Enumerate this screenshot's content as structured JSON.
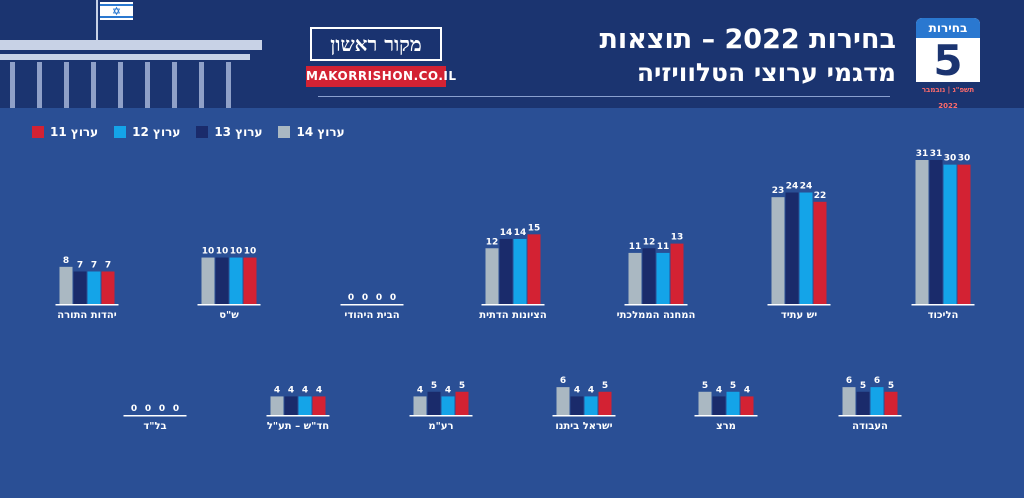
{
  "header": {
    "title_line1": "בחירות 2022 – תוצאות",
    "title_line2": "מדגמי ערוצי הטלוויזיה",
    "logo_text": "מקור ראשון",
    "logo_url": "MAKORRISHON.CO.IL",
    "calendar_title": "בחירות",
    "calendar_number": "5",
    "calendar_date": "תשפ\"ג | נובמבר 2022"
  },
  "colors": {
    "background": "#2a4f95",
    "header": "#1b3470",
    "channel14": "#aab8c2",
    "channel13": "#1a2b6b",
    "channel12": "#14a4e8",
    "channel11": "#d32233"
  },
  "chart_data": {
    "type": "bar",
    "series": [
      {
        "name": "ערוץ 14",
        "color": "#aab8c2"
      },
      {
        "name": "ערוץ 13",
        "color": "#1a2b6b"
      },
      {
        "name": "ערוץ 12",
        "color": "#14a4e8"
      },
      {
        "name": "ערוץ 11",
        "color": "#d32233"
      }
    ],
    "categories": [
      {
        "name": "הליכוד",
        "values": [
          31,
          31,
          30,
          30
        ]
      },
      {
        "name": "יש עתיד",
        "values": [
          23,
          24,
          24,
          22
        ]
      },
      {
        "name": "המחנה הממלכתי",
        "values": [
          11,
          12,
          11,
          13
        ]
      },
      {
        "name": "הציונות הדתית",
        "values": [
          12,
          14,
          14,
          15
        ]
      },
      {
        "name": "הבית היהודי",
        "values": [
          0,
          0,
          0,
          0
        ]
      },
      {
        "name": "ש\"ס",
        "values": [
          10,
          10,
          10,
          10
        ]
      },
      {
        "name": "יהדות התורה",
        "values": [
          8,
          7,
          7,
          7
        ]
      },
      {
        "name": "העבודה",
        "values": [
          6,
          5,
          6,
          5
        ]
      },
      {
        "name": "מרצ",
        "values": [
          5,
          4,
          5,
          4
        ]
      },
      {
        "name": "ישראל ביתנו",
        "values": [
          6,
          4,
          4,
          5
        ]
      },
      {
        "name": "רע\"מ",
        "values": [
          4,
          5,
          4,
          5
        ]
      },
      {
        "name": "חד\"ש – תע\"ל",
        "values": [
          4,
          4,
          4,
          4
        ]
      },
      {
        "name": "בל\"ד",
        "values": [
          0,
          0,
          0,
          0
        ]
      }
    ]
  }
}
